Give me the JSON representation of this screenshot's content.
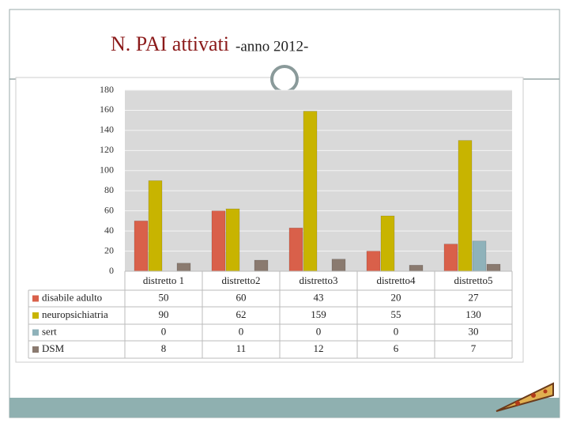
{
  "chart_data": {
    "type": "bar",
    "title": "N. PAI attivati",
    "subtitle": "-anno 2012-",
    "categories": [
      "distretto 1",
      "distretto2",
      "distretto3",
      "distretto4",
      "distretto5"
    ],
    "series": [
      {
        "name": "disabile adulto",
        "color": "#d9604a",
        "values": [
          50,
          60,
          43,
          20,
          27
        ]
      },
      {
        "name": "neuropsichiatria",
        "color": "#c8b400",
        "values": [
          90,
          62,
          159,
          55,
          130
        ]
      },
      {
        "name": "sert",
        "color": "#8fb2ba",
        "values": [
          0,
          0,
          0,
          0,
          30
        ]
      },
      {
        "name": "DSM",
        "color": "#8a7a6f",
        "values": [
          8,
          11,
          12,
          6,
          7
        ]
      }
    ],
    "ylim": [
      0,
      180
    ],
    "yticks": [
      0,
      20,
      40,
      60,
      80,
      100,
      120,
      140,
      160,
      180
    ],
    "grid": true
  }
}
